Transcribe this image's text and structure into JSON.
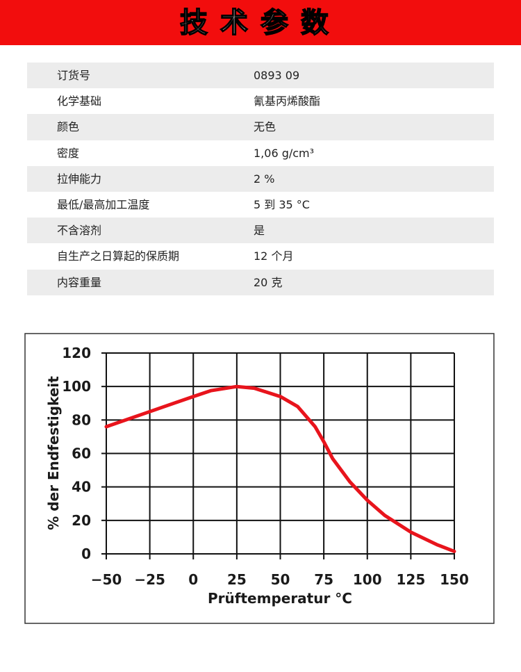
{
  "header": {
    "title": "技术参数"
  },
  "table": {
    "rows": [
      [
        "订货号",
        "0893 09"
      ],
      [
        "化学基础",
        "氰基丙烯酸酯"
      ],
      [
        "颜色",
        "无色"
      ],
      [
        "密度",
        "1,06 g/cm³"
      ],
      [
        "拉伸能力",
        "2 %"
      ],
      [
        "最低/最高加工温度",
        "5 到 35 °C"
      ],
      [
        "不含溶剂",
        "是"
      ],
      [
        "自生产之日算起的保质期",
        "12 个月"
      ],
      [
        "内容重量",
        "20 克"
      ]
    ]
  },
  "chart_data": {
    "type": "line",
    "x_label": "Prüftemperatur °C",
    "y_label": "% der Endfestigkeit",
    "x": [
      -50,
      -25,
      0,
      10,
      25,
      35,
      50,
      60,
      70,
      75,
      80,
      90,
      100,
      110,
      125,
      140,
      150
    ],
    "values": [
      76,
      85,
      94,
      97.5,
      100,
      99,
      94,
      88,
      76,
      67,
      57,
      43,
      32,
      23,
      13,
      5.5,
      1.5
    ],
    "color": "#e8141c",
    "xlim": [
      -50,
      150
    ],
    "ylim": [
      0,
      120
    ],
    "xticks": [
      {
        "value": -50,
        "label": "−50"
      },
      {
        "value": -25,
        "label": "−25"
      },
      0,
      25,
      50,
      75,
      100,
      125,
      150
    ],
    "yticks": [
      0,
      20,
      40,
      60,
      80,
      100,
      120
    ],
    "grid": true
  }
}
